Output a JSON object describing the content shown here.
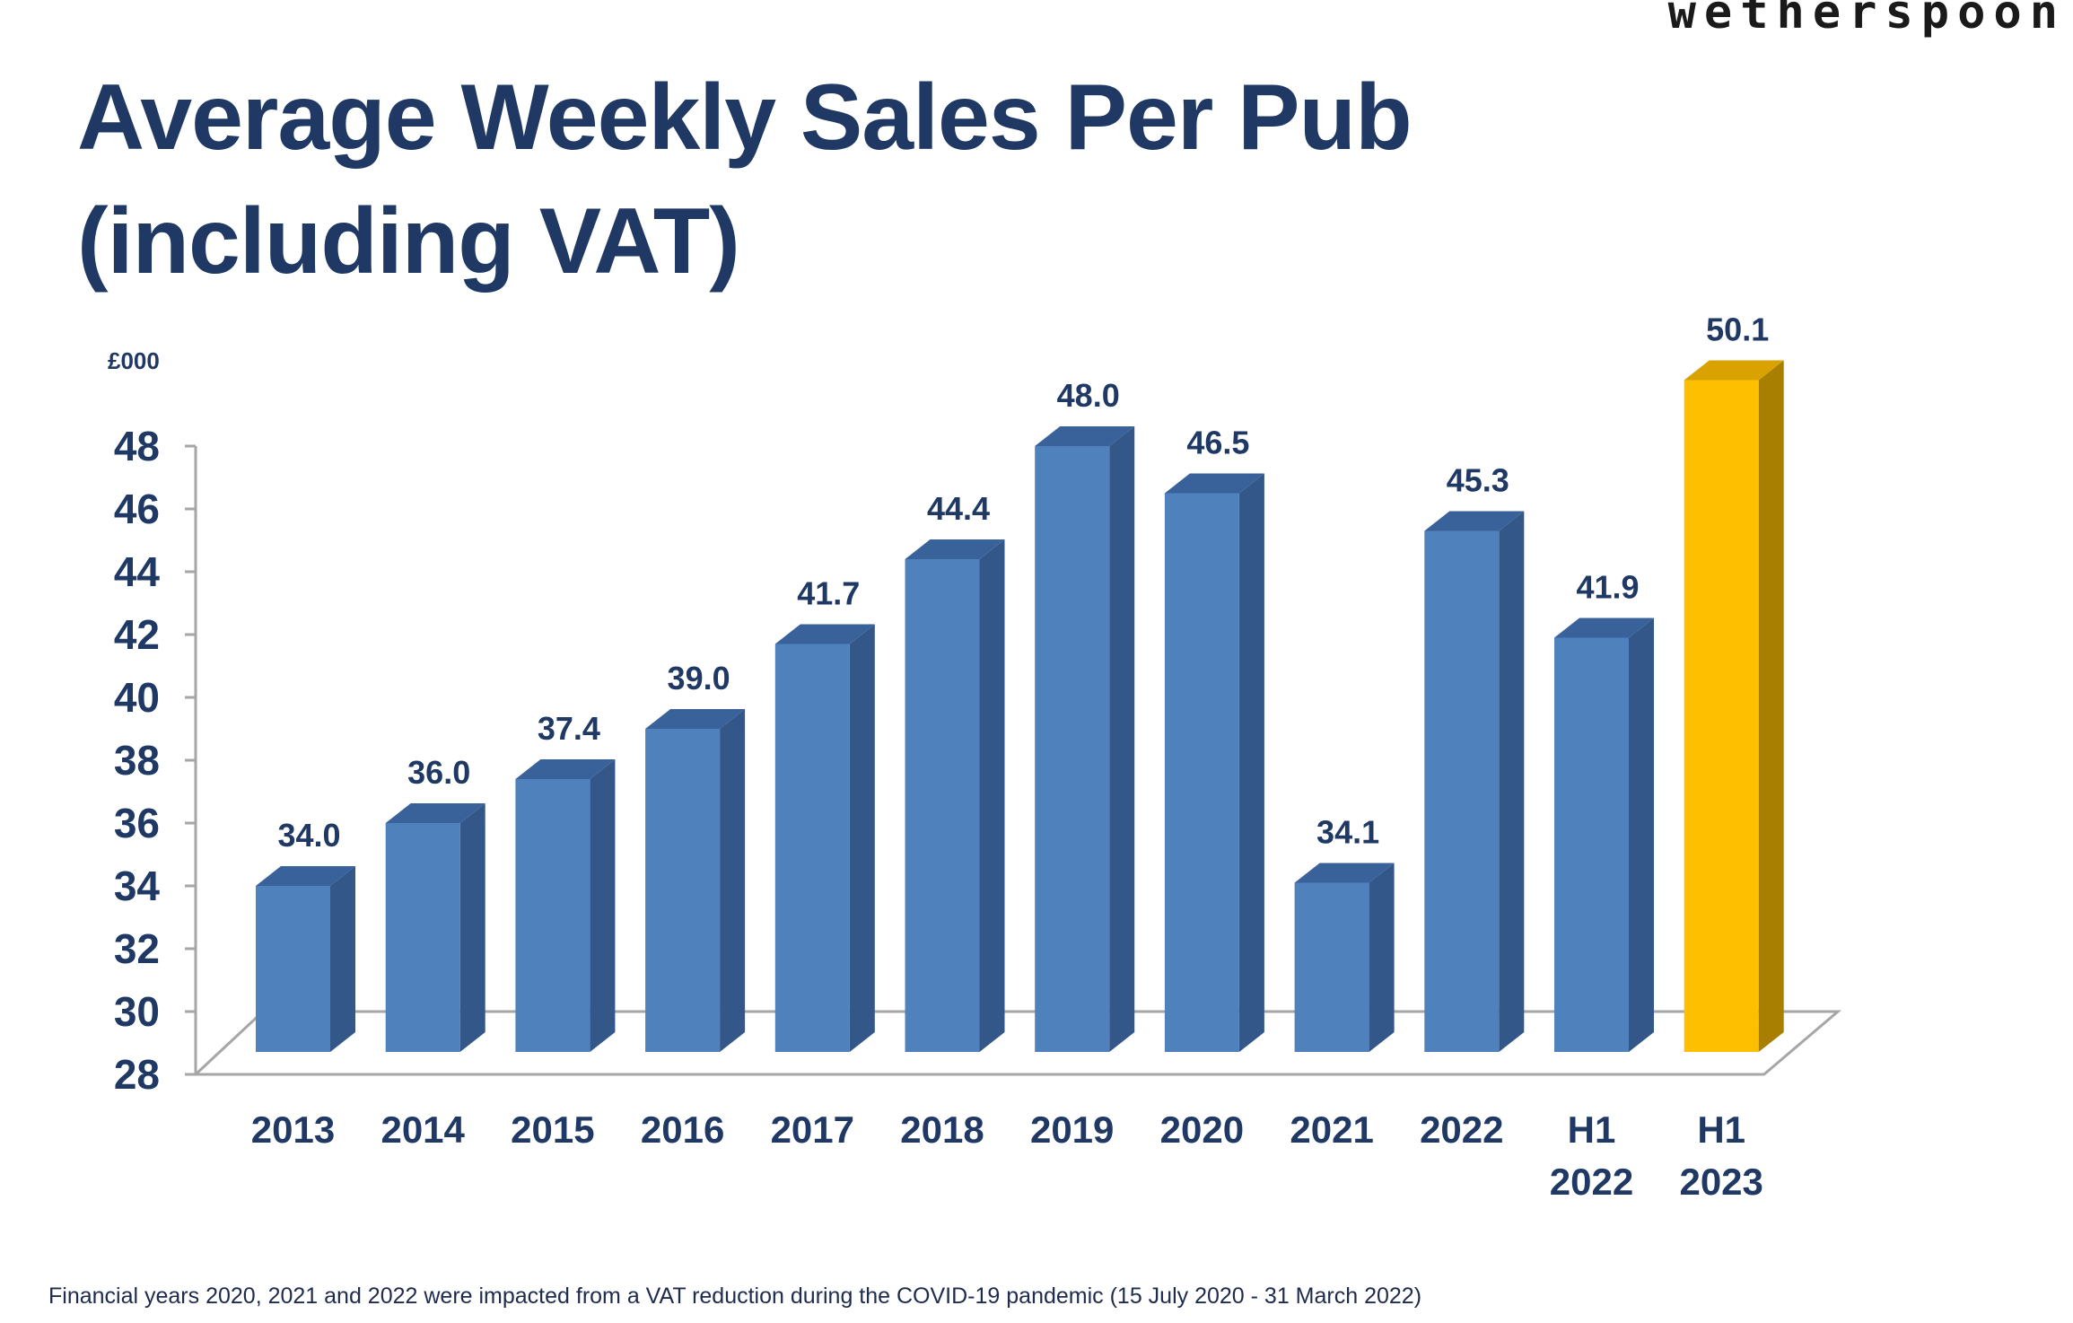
{
  "brand": {
    "logo_text": "wetherspoon"
  },
  "title": {
    "line1": "Average Weekly Sales Per Pub",
    "line2": "(including VAT)"
  },
  "footnote": "Financial years 2020, 2021 and 2022 were impacted from a VAT reduction during the COVID-19 pandemic (15 July 2020 - 31 March 2022)",
  "chart_data": {
    "type": "bar",
    "three_d": true,
    "unit_label": "£000",
    "categories": [
      [
        "2013"
      ],
      [
        "2014"
      ],
      [
        "2015"
      ],
      [
        "2016"
      ],
      [
        "2017"
      ],
      [
        "2018"
      ],
      [
        "2019"
      ],
      [
        "2020"
      ],
      [
        "2021"
      ],
      [
        "2022"
      ],
      [
        "H1",
        "2022"
      ],
      [
        "H1",
        "2023"
      ]
    ],
    "values": [
      34.0,
      36.0,
      37.4,
      39.0,
      41.7,
      44.4,
      48.0,
      46.5,
      34.1,
      45.3,
      41.9,
      50.1
    ],
    "value_labels": [
      "34.0",
      "36.0",
      "37.4",
      "39.0",
      "41.7",
      "44.4",
      "48.0",
      "46.5",
      "34.1",
      "45.3",
      "41.9",
      "50.1"
    ],
    "highlight_index": 11,
    "ylim": [
      28,
      48
    ],
    "yticks": [
      28,
      30,
      32,
      34,
      36,
      38,
      40,
      42,
      44,
      46,
      48
    ],
    "colors": {
      "bar_front": "#4f81bd",
      "bar_side": "#345789",
      "bar_top": "#3a629a",
      "highlight_front": "#fdbf00",
      "highlight_side": "#a87f00",
      "highlight_top": "#d9a200",
      "text": "#1f3864",
      "axis": "#a6a6a6"
    },
    "gridlines": false,
    "legend": "none"
  }
}
